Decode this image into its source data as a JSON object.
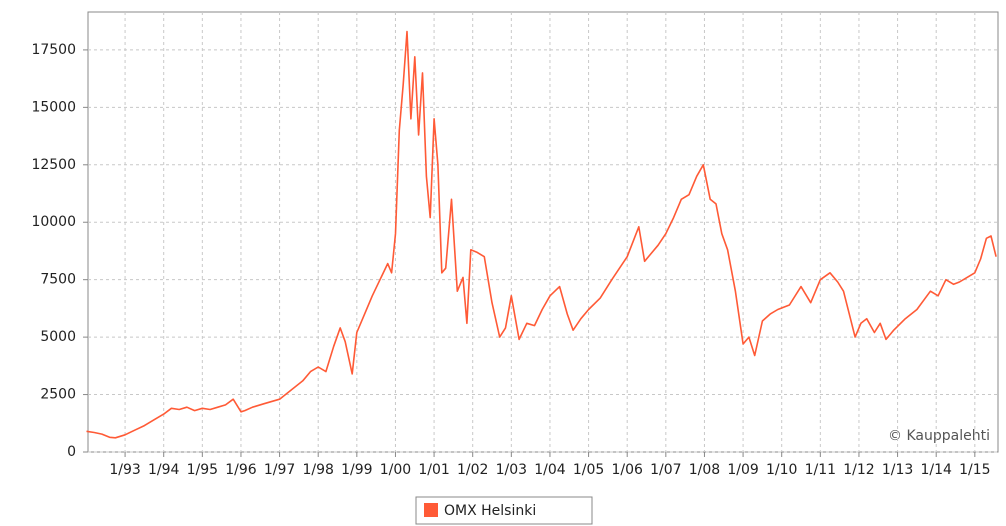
{
  "chart_data": {
    "type": "line",
    "annotation": "© Kauppalehti",
    "x": [
      1992.0,
      1992.2,
      1992.4,
      1992.6,
      1992.75,
      1993.0,
      1993.25,
      1993.5,
      1993.75,
      1994.0,
      1994.2,
      1994.4,
      1994.6,
      1994.8,
      1995.0,
      1995.2,
      1995.4,
      1995.6,
      1995.8,
      1996.0,
      1996.1,
      1996.3,
      1996.6,
      1997.0,
      1997.3,
      1997.6,
      1997.8,
      1998.0,
      1998.2,
      1998.4,
      1998.57,
      1998.7,
      1998.88,
      1999.0,
      1999.2,
      1999.4,
      1999.6,
      1999.8,
      1999.9,
      2000.0,
      2000.1,
      2000.2,
      2000.3,
      2000.4,
      2000.5,
      2000.6,
      2000.7,
      2000.8,
      2000.9,
      2001.0,
      2001.1,
      2001.2,
      2001.3,
      2001.45,
      2001.6,
      2001.75,
      2001.85,
      2001.95,
      2002.1,
      2002.3,
      2002.5,
      2002.7,
      2002.85,
      2003.0,
      2003.2,
      2003.4,
      2003.6,
      2003.8,
      2004.0,
      2004.25,
      2004.45,
      2004.6,
      2004.8,
      2005.0,
      2005.3,
      2005.6,
      2005.8,
      2006.0,
      2006.3,
      2006.45,
      2006.6,
      2006.8,
      2007.0,
      2007.2,
      2007.4,
      2007.6,
      2007.8,
      2007.97,
      2008.15,
      2008.3,
      2008.45,
      2008.6,
      2008.8,
      2009.0,
      2009.15,
      2009.3,
      2009.5,
      2009.7,
      2009.9,
      2010.2,
      2010.5,
      2010.75,
      2011.0,
      2011.25,
      2011.45,
      2011.6,
      2011.75,
      2011.9,
      2012.05,
      2012.2,
      2012.4,
      2012.55,
      2012.7,
      2012.9,
      2013.2,
      2013.5,
      2013.85,
      2014.05,
      2014.25,
      2014.45,
      2014.6,
      2014.8,
      2015.0,
      2015.15,
      2015.3,
      2015.42,
      2015.55
    ],
    "series": [
      {
        "name": "OMX Helsinki",
        "color": "#ff5a36",
        "values": [
          900,
          850,
          780,
          640,
          620,
          750,
          950,
          1150,
          1400,
          1650,
          1900,
          1850,
          1950,
          1800,
          1900,
          1850,
          1950,
          2050,
          2300,
          1750,
          1800,
          1950,
          2100,
          2300,
          2700,
          3100,
          3500,
          3700,
          3500,
          4600,
          5400,
          4800,
          3400,
          5200,
          6000,
          6800,
          7500,
          8200,
          7800,
          9500,
          14000,
          16000,
          18300,
          14500,
          17200,
          13800,
          16500,
          12000,
          10200,
          14500,
          12500,
          7800,
          8000,
          11000,
          7000,
          7600,
          5600,
          8800,
          8700,
          8500,
          6500,
          5000,
          5400,
          6800,
          4900,
          5600,
          5500,
          6200,
          6800,
          7200,
          6000,
          5300,
          5800,
          6200,
          6700,
          7500,
          8000,
          8500,
          9800,
          8300,
          8600,
          9000,
          9500,
          10200,
          11000,
          11200,
          12000,
          12500,
          11000,
          10800,
          9500,
          8800,
          7000,
          4700,
          5000,
          4200,
          5700,
          6000,
          6200,
          6400,
          7200,
          6500,
          7500,
          7800,
          7400,
          7000,
          6000,
          5000,
          5600,
          5800,
          5200,
          5600,
          4900,
          5300,
          5800,
          6200,
          7000,
          6800,
          7500,
          7300,
          7400,
          7600,
          7800,
          8400,
          9300,
          9400,
          8500
        ]
      }
    ],
    "xlim": [
      1992.04,
      2015.6
    ],
    "xticks": [
      {
        "value": 1993,
        "label": "1/93"
      },
      {
        "value": 1994,
        "label": "1/94"
      },
      {
        "value": 1995,
        "label": "1/95"
      },
      {
        "value": 1996,
        "label": "1/96"
      },
      {
        "value": 1997,
        "label": "1/97"
      },
      {
        "value": 1998,
        "label": "1/98"
      },
      {
        "value": 1999,
        "label": "1/99"
      },
      {
        "value": 2000,
        "label": "1/00"
      },
      {
        "value": 2001,
        "label": "1/01"
      },
      {
        "value": 2002,
        "label": "1/02"
      },
      {
        "value": 2003,
        "label": "1/03"
      },
      {
        "value": 2004,
        "label": "1/04"
      },
      {
        "value": 2005,
        "label": "1/05"
      },
      {
        "value": 2006,
        "label": "1/06"
      },
      {
        "value": 2007,
        "label": "1/07"
      },
      {
        "value": 2008,
        "label": "1/08"
      },
      {
        "value": 2009,
        "label": "1/09"
      },
      {
        "value": 2010,
        "label": "1/10"
      },
      {
        "value": 2011,
        "label": "1/11"
      },
      {
        "value": 2012,
        "label": "1/12"
      },
      {
        "value": 2013,
        "label": "1/13"
      },
      {
        "value": 2014,
        "label": "1/14"
      },
      {
        "value": 2015,
        "label": "1/15"
      }
    ],
    "ylim": [
      0,
      19150
    ],
    "yticks": [
      0,
      2500,
      5000,
      7500,
      10000,
      12500,
      15000,
      17500
    ],
    "grid": true
  }
}
